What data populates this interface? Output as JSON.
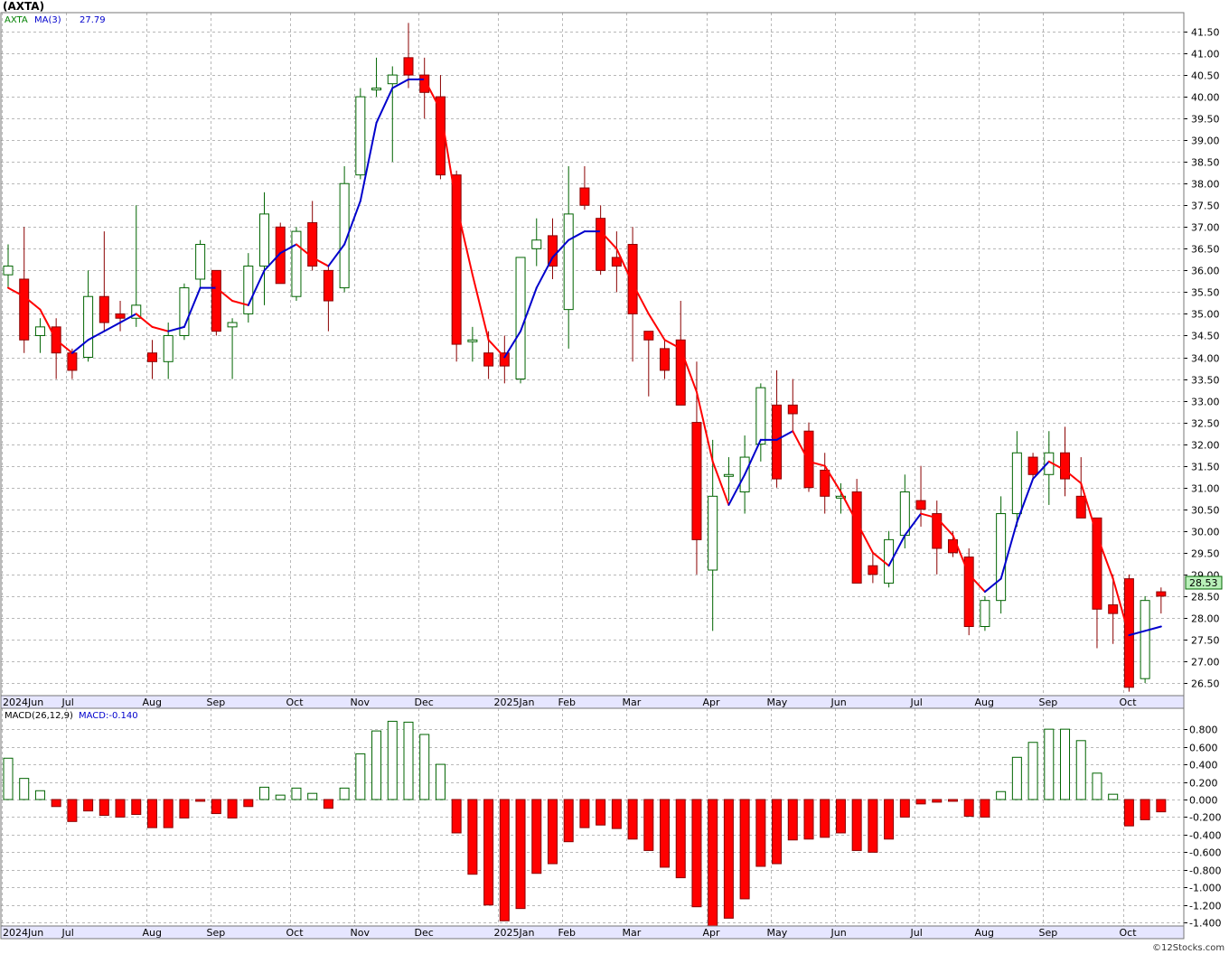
{
  "header": {
    "symbol": "(AXTA)",
    "ticker_legend": "AXTA",
    "ma_legend": "MA(3)",
    "ma_value": "27.79",
    "last_price": "28.53",
    "watermark": "©12Stocks.com"
  },
  "colors": {
    "up_candle": "#ffffff",
    "up_border": "#006400",
    "down_candle": "#ff0000",
    "down_border": "#8b0000",
    "ma_up": "#0000cc",
    "ma_down": "#ff0000",
    "macd_up": "#ffffff",
    "macd_down": "#ff0000",
    "price_tag": "#b8f0b8",
    "axis_band": "#e6e6ff"
  },
  "chart_data": [
    {
      "type": "candlestick",
      "title": "(AXTA)",
      "x_labels": [
        "2024Jun",
        "Jul",
        "Aug",
        "Sep",
        "Oct",
        "Nov",
        "Dec",
        "2025Jan",
        "Feb",
        "Mar",
        "Apr",
        "May",
        "Jun",
        "Jul",
        "Aug",
        "Sep",
        "Oct"
      ],
      "ylim": [
        26.2,
        41.8
      ],
      "y_ticks": [
        "26.50",
        "27.00",
        "27.50",
        "28.00",
        "28.50",
        "29.00",
        "29.50",
        "30.00",
        "30.50",
        "31.00",
        "31.50",
        "32.00",
        "32.50",
        "33.00",
        "33.50",
        "34.00",
        "34.50",
        "35.00",
        "35.50",
        "36.00",
        "36.50",
        "37.00",
        "37.50",
        "38.00",
        "38.50",
        "39.00",
        "39.50",
        "40.00",
        "40.50",
        "41.00",
        "41.50"
      ],
      "grid": true,
      "series": [
        {
          "name": "AXTA",
          "ohlc": [
            [
              35.9,
              36.6,
              35.6,
              36.1
            ],
            [
              35.8,
              37.0,
              34.1,
              34.4
            ],
            [
              34.5,
              34.9,
              34.1,
              34.7
            ],
            [
              34.7,
              34.9,
              33.5,
              34.1
            ],
            [
              34.1,
              34.2,
              33.5,
              33.7
            ],
            [
              34.0,
              36.0,
              33.9,
              35.4
            ],
            [
              35.4,
              36.9,
              34.6,
              34.8
            ],
            [
              35.0,
              35.3,
              34.6,
              34.9
            ],
            [
              34.9,
              37.5,
              34.7,
              35.2
            ],
            [
              34.1,
              34.4,
              33.5,
              33.9
            ],
            [
              33.9,
              34.8,
              33.5,
              34.5
            ],
            [
              34.5,
              35.7,
              34.4,
              35.6
            ],
            [
              35.8,
              36.7,
              35.6,
              36.6
            ],
            [
              36.0,
              36.0,
              34.5,
              34.6
            ],
            [
              34.7,
              34.9,
              33.5,
              34.8
            ],
            [
              35.0,
              36.4,
              34.8,
              36.1
            ],
            [
              36.1,
              37.8,
              35.2,
              37.3
            ],
            [
              37.0,
              37.1,
              35.7,
              35.7
            ],
            [
              35.4,
              37.0,
              35.3,
              36.9
            ],
            [
              37.1,
              37.6,
              36.0,
              36.1
            ],
            [
              36.0,
              36.1,
              34.6,
              35.3
            ],
            [
              35.6,
              38.4,
              35.5,
              38.0
            ],
            [
              38.2,
              40.2,
              38.1,
              40.0
            ],
            [
              40.2,
              40.9,
              40.0,
              40.2
            ],
            [
              40.3,
              40.7,
              38.5,
              40.5
            ],
            [
              40.9,
              41.7,
              40.2,
              40.5
            ],
            [
              40.5,
              40.9,
              39.5,
              40.1
            ],
            [
              40.0,
              40.5,
              38.1,
              38.2
            ],
            [
              38.2,
              38.3,
              33.9,
              34.3
            ],
            [
              34.4,
              34.7,
              33.9,
              34.4
            ],
            [
              34.1,
              34.6,
              33.5,
              33.8
            ],
            [
              34.1,
              34.5,
              33.4,
              33.8
            ],
            [
              33.5,
              36.3,
              33.4,
              36.3
            ],
            [
              36.5,
              37.2,
              36.1,
              36.7
            ],
            [
              36.8,
              37.2,
              35.8,
              36.1
            ],
            [
              35.1,
              38.4,
              34.2,
              37.3
            ],
            [
              37.9,
              38.4,
              37.4,
              37.5
            ],
            [
              37.2,
              37.5,
              35.9,
              36.0
            ],
            [
              36.3,
              36.9,
              35.5,
              36.1
            ],
            [
              36.6,
              37.0,
              33.9,
              35.0
            ],
            [
              34.6,
              34.6,
              33.1,
              34.4
            ],
            [
              34.2,
              34.4,
              33.5,
              33.7
            ],
            [
              34.4,
              35.3,
              33.0,
              32.9
            ],
            [
              32.5,
              33.9,
              29.0,
              29.8
            ],
            [
              29.1,
              32.1,
              27.7,
              30.8
            ],
            [
              31.3,
              31.7,
              30.7,
              31.3
            ],
            [
              30.9,
              32.2,
              30.4,
              31.7
            ],
            [
              32.0,
              33.4,
              31.6,
              33.3
            ],
            [
              32.9,
              33.7,
              31.0,
              31.2
            ],
            [
              32.9,
              33.5,
              32.3,
              32.7
            ],
            [
              32.3,
              32.5,
              30.9,
              31.0
            ],
            [
              31.4,
              31.8,
              30.4,
              30.8
            ],
            [
              30.8,
              31.1,
              30.4,
              30.8
            ],
            [
              30.9,
              31.2,
              28.8,
              28.8
            ],
            [
              29.2,
              29.5,
              28.8,
              29.0
            ],
            [
              28.8,
              30.0,
              28.7,
              29.8
            ],
            [
              29.9,
              31.3,
              29.6,
              30.9
            ],
            [
              30.7,
              31.5,
              30.1,
              30.5
            ],
            [
              30.4,
              30.7,
              29.0,
              29.6
            ],
            [
              29.8,
              30.0,
              29.4,
              29.5
            ],
            [
              29.4,
              29.6,
              27.6,
              27.8
            ],
            [
              27.8,
              28.5,
              27.7,
              28.4
            ],
            [
              28.4,
              30.8,
              28.1,
              30.4
            ],
            [
              30.4,
              32.3,
              30.1,
              31.8
            ],
            [
              31.7,
              31.8,
              31.2,
              31.3
            ],
            [
              31.3,
              32.3,
              30.6,
              31.8
            ],
            [
              31.8,
              32.4,
              30.8,
              31.2
            ],
            [
              30.8,
              31.7,
              30.3,
              30.3
            ],
            [
              30.3,
              30.3,
              27.3,
              28.2
            ],
            [
              28.3,
              29.0,
              27.4,
              28.1
            ],
            [
              28.9,
              29.0,
              26.3,
              26.4
            ],
            [
              26.6,
              28.5,
              26.5,
              28.4
            ],
            [
              28.6,
              28.7,
              28.1,
              28.5
            ]
          ]
        },
        {
          "name": "MA(3)",
          "values": [
            35.6,
            35.4,
            35.1,
            34.4,
            34.1,
            34.4,
            34.6,
            34.8,
            35.0,
            34.7,
            34.6,
            34.7,
            35.6,
            35.6,
            35.3,
            35.2,
            36.0,
            36.4,
            36.6,
            36.3,
            36.1,
            36.6,
            37.6,
            39.4,
            40.2,
            40.4,
            40.4,
            39.7,
            37.5,
            35.9,
            34.4,
            34.0,
            34.6,
            35.6,
            36.3,
            36.7,
            36.9,
            36.9,
            36.5,
            35.7,
            35.0,
            34.4,
            34.2,
            33.2,
            31.6,
            30.6,
            31.3,
            32.1,
            32.1,
            32.3,
            31.6,
            31.5,
            30.9,
            30.2,
            29.5,
            29.2,
            29.9,
            30.4,
            30.3,
            29.9,
            29.0,
            28.6,
            28.9,
            30.2,
            31.2,
            31.6,
            31.4,
            31.1,
            29.9,
            28.9,
            27.6,
            27.7,
            27.8
          ]
        }
      ]
    },
    {
      "type": "bar",
      "title": "MACD(26,12,9)",
      "legend": "MACD:-0.140",
      "ylim": [
        -1.45,
        0.92
      ],
      "y_ticks": [
        "0.800",
        "0.600",
        "0.400",
        "0.200",
        "0.000",
        "-0.200",
        "-0.400",
        "-0.600",
        "-0.800",
        "-1.000",
        "-1.200",
        "-1.400"
      ],
      "grid": true,
      "series": [
        {
          "name": "MACD",
          "values": [
            0.47,
            0.24,
            0.1,
            -0.08,
            -0.25,
            -0.13,
            -0.18,
            -0.2,
            -0.17,
            -0.32,
            -0.32,
            -0.21,
            -0.02,
            -0.16,
            -0.21,
            -0.08,
            0.14,
            0.05,
            0.13,
            0.07,
            -0.1,
            0.13,
            0.52,
            0.78,
            0.89,
            0.88,
            0.74,
            0.4,
            -0.38,
            -0.85,
            -1.2,
            -1.38,
            -1.24,
            -0.84,
            -0.73,
            -0.48,
            -0.32,
            -0.29,
            -0.33,
            -0.45,
            -0.58,
            -0.77,
            -0.89,
            -1.22,
            -1.45,
            -1.35,
            -1.13,
            -0.76,
            -0.73,
            -0.46,
            -0.45,
            -0.43,
            -0.38,
            -0.58,
            -0.6,
            -0.45,
            -0.2,
            -0.05,
            -0.03,
            -0.02,
            -0.19,
            -0.2,
            0.09,
            0.48,
            0.65,
            0.8,
            0.8,
            0.67,
            0.3,
            0.06,
            -0.3,
            -0.23,
            -0.14
          ]
        }
      ]
    }
  ]
}
